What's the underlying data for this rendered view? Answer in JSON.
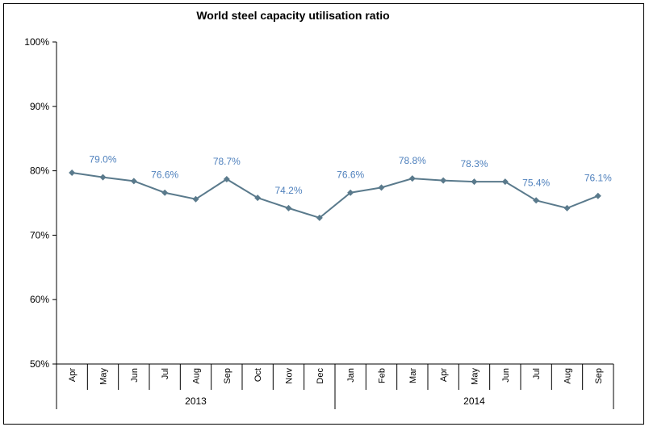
{
  "colors": {
    "series": "#5a7a8c",
    "label": "#4f81bd",
    "axis": "#000000",
    "background": "#ffffff"
  },
  "chart_data": {
    "type": "line",
    "title": "World steel capacity utilisation ratio",
    "xlabel": "",
    "ylabel": "",
    "ylim": [
      50,
      100
    ],
    "yticks": [
      50,
      60,
      70,
      80,
      90,
      100
    ],
    "ytick_labels": [
      "50%",
      "60%",
      "70%",
      "80%",
      "90%",
      "100%"
    ],
    "grid": false,
    "legend": "none",
    "categories": [
      "Apr",
      "May",
      "Jun",
      "Jul",
      "Aug",
      "Sep",
      "Oct",
      "Nov",
      "Dec",
      "Jan",
      "Feb",
      "Mar",
      "Apr",
      "May",
      "Jun",
      "Jul",
      "Aug",
      "Sep"
    ],
    "groups": [
      {
        "label": "2013",
        "count": 9
      },
      {
        "label": "2014",
        "count": 9
      }
    ],
    "series": [
      {
        "values": [
          79.7,
          79.0,
          78.4,
          76.6,
          75.6,
          78.7,
          75.8,
          74.2,
          72.7,
          76.6,
          77.4,
          78.8,
          78.5,
          78.3,
          78.3,
          75.4,
          74.2,
          76.1
        ]
      }
    ],
    "data_labels": [
      {
        "index": 1,
        "text": "79.0%"
      },
      {
        "index": 3,
        "text": "76.6%"
      },
      {
        "index": 5,
        "text": "78.7%"
      },
      {
        "index": 7,
        "text": "74.2%"
      },
      {
        "index": 9,
        "text": "76.6%"
      },
      {
        "index": 11,
        "text": "78.8%"
      },
      {
        "index": 13,
        "text": "78.3%"
      },
      {
        "index": 15,
        "text": "75.4%"
      },
      {
        "index": 17,
        "text": "76.1%"
      }
    ]
  }
}
